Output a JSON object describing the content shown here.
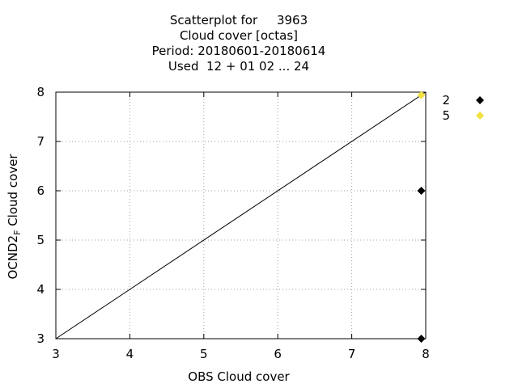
{
  "chart_data": {
    "type": "scatter",
    "title_lines": [
      "Scatterplot for     3963",
      "Cloud cover [octas]",
      "Period: 20180601-20180614",
      "Used  12 + 01 02 ... 24"
    ],
    "xlabel": "OBS Cloud cover",
    "ylabel_main": "OCND2",
    "ylabel_sub": "F",
    "ylabel_tail": " Cloud cover",
    "xlim": [
      3,
      8
    ],
    "ylim": [
      3,
      8
    ],
    "xticks": [
      3,
      4,
      5,
      6,
      7,
      8
    ],
    "yticks": [
      3,
      4,
      5,
      6,
      7,
      8
    ],
    "grid": true,
    "reference_line": {
      "from": [
        3,
        3
      ],
      "to": [
        8,
        8
      ],
      "color": "#000000"
    },
    "series": [
      {
        "name": "2",
        "color": "#000000",
        "points": [
          [
            7.94,
            6
          ],
          [
            7.94,
            3
          ]
        ]
      },
      {
        "name": "5",
        "color": "#f0e040",
        "points": [
          [
            7.94,
            7.94
          ]
        ]
      }
    ],
    "legend_placement": "top-right outside"
  }
}
